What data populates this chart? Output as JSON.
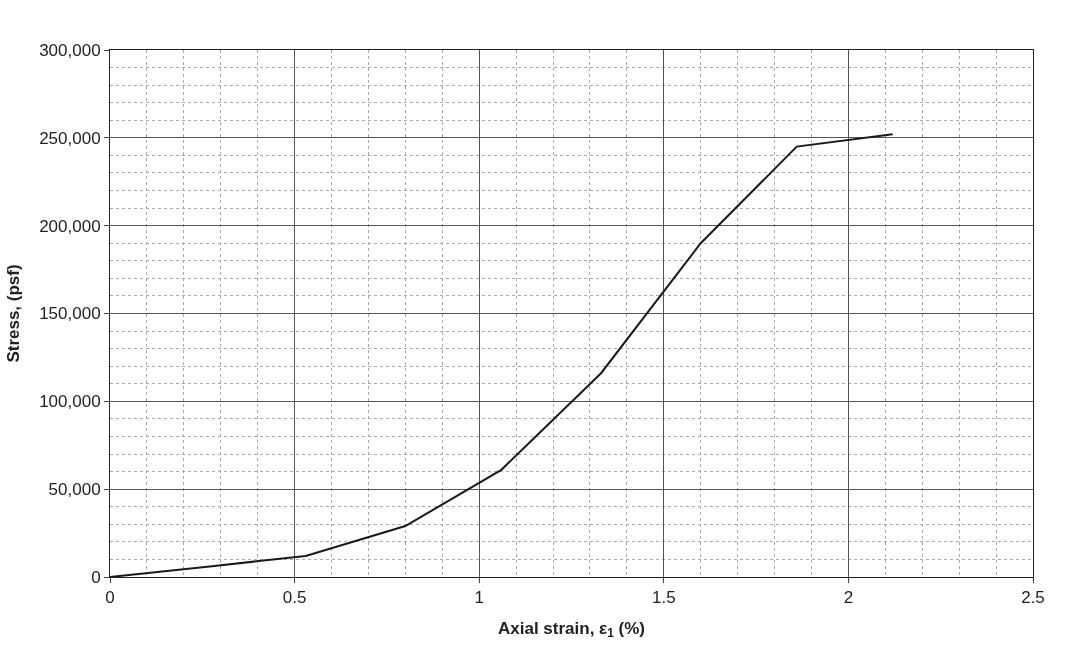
{
  "chart_data": {
    "type": "line",
    "xlabel": "Axial strain, ε$_{1}$ (%)",
    "ylabel": "Stress, (psf)",
    "series": [
      {
        "color": "#1a1a1a",
        "x": [
          0,
          0.27,
          0.53,
          0.8,
          1.06,
          1.33,
          1.6,
          1.86,
          2.12
        ],
        "values": [
          0,
          6000,
          12000,
          29000,
          61000,
          116000,
          190000,
          245000,
          252000
        ]
      }
    ],
    "xlim": [
      0,
      2.5
    ],
    "xticks": [
      0,
      0.5,
      1,
      1.5,
      2,
      2.5
    ],
    "ylim": [
      0,
      300000
    ],
    "yticks": [
      0,
      {
        "value": 50000,
        "label": "50,000"
      },
      {
        "value": 100000,
        "label": "100,000"
      },
      {
        "value": 150000,
        "label": "150,000"
      },
      {
        "value": 200000,
        "label": "200,000"
      },
      {
        "value": 250000,
        "label": "250,000"
      },
      {
        "value": 300000,
        "label": "300,000"
      }
    ],
    "grid": true,
    "marker": "none",
    "line_style": "solid"
  }
}
